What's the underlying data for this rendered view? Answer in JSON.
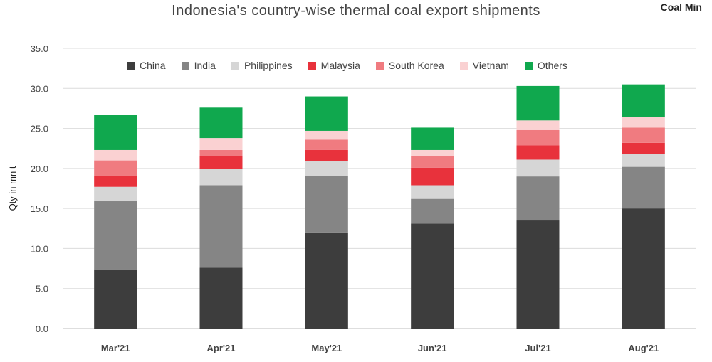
{
  "title": "Indonesia's country-wise thermal coal export shipments",
  "source_label": "Coal Min",
  "chart_data": {
    "type": "bar",
    "stacked": true,
    "title": "Indonesia's country-wise thermal coal export shipments",
    "xlabel": "",
    "ylabel": "Qty in mn t",
    "ylim": [
      0,
      35
    ],
    "yticks": [
      "0.0",
      "5.0",
      "10.0",
      "15.0",
      "20.0",
      "25.0",
      "30.0",
      "35.0"
    ],
    "grid": true,
    "legend_position": "top",
    "categories": [
      "Mar'21",
      "Apr'21",
      "May'21",
      "Jun'21",
      "Jul'21",
      "Aug'21"
    ],
    "series": [
      {
        "name": "China",
        "color": "#3d3d3d",
        "values": [
          7.4,
          7.6,
          12.0,
          13.1,
          13.5,
          15.0
        ]
      },
      {
        "name": "India",
        "color": "#858585",
        "values": [
          8.5,
          10.3,
          7.1,
          3.1,
          5.5,
          5.2
        ]
      },
      {
        "name": "Philippines",
        "color": "#d6d6d6",
        "values": [
          1.8,
          2.0,
          1.8,
          1.7,
          2.1,
          1.6
        ]
      },
      {
        "name": "Malaysia",
        "color": "#e8323c",
        "values": [
          1.4,
          1.6,
          1.4,
          2.2,
          1.8,
          1.4
        ]
      },
      {
        "name": "South Korea",
        "color": "#f07b80",
        "values": [
          1.9,
          0.8,
          1.3,
          1.4,
          1.9,
          1.9
        ]
      },
      {
        "name": "Vietnam",
        "color": "#fad1d2",
        "values": [
          1.3,
          1.5,
          1.1,
          0.8,
          1.2,
          1.3
        ]
      },
      {
        "name": "Others",
        "color": "#10a84e",
        "values": [
          4.4,
          3.8,
          4.3,
          2.8,
          4.3,
          4.1
        ]
      }
    ]
  }
}
